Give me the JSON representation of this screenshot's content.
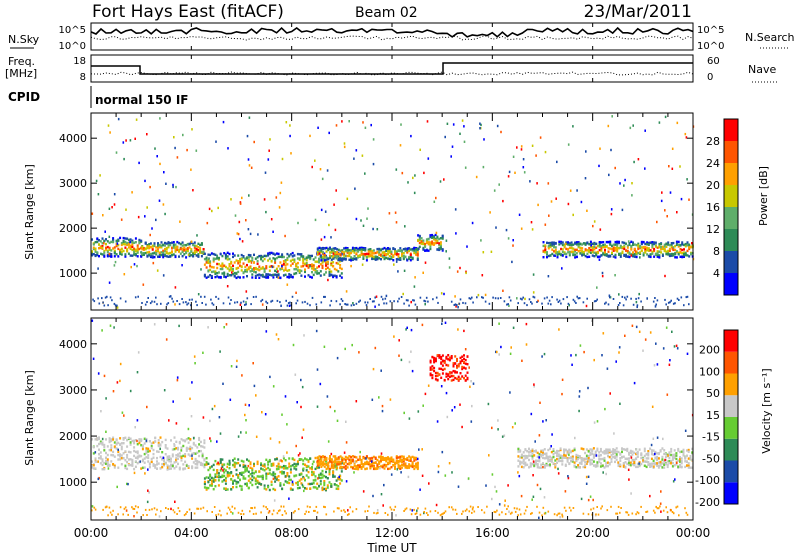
{
  "header": {
    "title": "Fort Hays East (fitACF)",
    "beam": "Beam 02",
    "date": "23/Mar/2011"
  },
  "noise_panel": {
    "left_label": "N.Sky",
    "left_ticks": [
      "10^5",
      "10^0"
    ],
    "right_label": "N.Search",
    "right_ticks": [
      "10^5",
      "10^0"
    ]
  },
  "freq_panel": {
    "left_label_1": "Freq.",
    "left_label_2": "[MHz]",
    "left_ticks": [
      "18",
      "8"
    ],
    "right_label": "Nave",
    "right_ticks": [
      "60",
      "0"
    ]
  },
  "cpid": {
    "label": "CPID",
    "value": "normal 150 IF"
  },
  "chart_data": [
    {
      "type": "heatmap",
      "panel": "power",
      "ylabel": "Slant Range [km]",
      "yticks": [
        "1000",
        "2000",
        "3000",
        "4000"
      ],
      "ylim": [
        180,
        4560
      ],
      "xlim_hours": [
        0,
        24
      ],
      "xticks": [
        "00:00",
        "04:00",
        "08:00",
        "12:00",
        "16:00",
        "20:00",
        "00:00"
      ],
      "colorbar": {
        "label": "Power [dB]",
        "ticks": [
          "4",
          "8",
          "12",
          "16",
          "20",
          "24",
          "28"
        ],
        "colors": [
          "#0000ff",
          "#1b4ba8",
          "#2e8b57",
          "#5fae6a",
          "#c8c800",
          "#ffa000",
          "#ff5500",
          "#ff0000"
        ]
      },
      "echo_bands": [
        {
          "t_start": 0.0,
          "t_end": 2.0,
          "range_km": 1600,
          "width_km": 300
        },
        {
          "t_start": 2.0,
          "t_end": 4.5,
          "range_km": 1550,
          "width_km": 250
        },
        {
          "t_start": 4.5,
          "t_end": 10.0,
          "range_km": 1200,
          "width_km": 400
        },
        {
          "t_start": 9.0,
          "t_end": 13.0,
          "range_km": 1450,
          "width_km": 200
        },
        {
          "t_start": 13.0,
          "t_end": 14.0,
          "range_km": 1700,
          "width_km": 250
        },
        {
          "t_start": 18.0,
          "t_end": 24.0,
          "range_km": 1550,
          "width_km": 250
        }
      ]
    },
    {
      "type": "heatmap",
      "panel": "velocity",
      "ylabel": "Slant Range [km]",
      "yticks": [
        "1000",
        "2000",
        "3000",
        "4000"
      ],
      "ylim": [
        180,
        4560
      ],
      "xlim_hours": [
        0,
        24
      ],
      "xlabel": "Time UT",
      "xticks": [
        "00:00",
        "04:00",
        "08:00",
        "12:00",
        "16:00",
        "20:00",
        "00:00"
      ],
      "colorbar": {
        "label": "Velocity [m s⁻¹]",
        "ticks": [
          "200",
          "100",
          "50",
          "15",
          "-15",
          "-50",
          "-100",
          "-200"
        ],
        "colors": [
          "#0000ff",
          "#1b4ba8",
          "#2e8b57",
          "#66cc33",
          "#c8c8c8",
          "#ffa000",
          "#ff5500",
          "#ff0000"
        ]
      },
      "echo_bands": [
        {
          "t_start": 0.0,
          "t_end": 4.5,
          "range_km": 1650,
          "width_km": 500,
          "velocity": "gray"
        },
        {
          "t_start": 4.5,
          "t_end": 10.0,
          "range_km": 1200,
          "width_km": 500,
          "velocity": "green/orange"
        },
        {
          "t_start": 9.0,
          "t_end": 13.0,
          "range_km": 1450,
          "width_km": 200,
          "velocity": "orange"
        },
        {
          "t_start": 13.5,
          "t_end": 15.0,
          "range_km": 3500,
          "width_km": 400,
          "velocity": "red"
        },
        {
          "t_start": 17.0,
          "t_end": 24.0,
          "range_km": 1550,
          "width_km": 300,
          "velocity": "gray"
        }
      ]
    }
  ]
}
